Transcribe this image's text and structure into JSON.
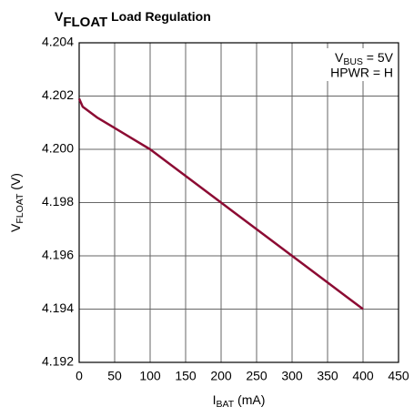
{
  "chart_data": {
    "type": "line",
    "title": [
      "V",
      "FLOAT",
      " Load Regulation"
    ],
    "xlabel": [
      "I",
      "BAT",
      " (mA)"
    ],
    "ylabel": [
      "V",
      "FLOAT",
      " (V)"
    ],
    "annotations": [
      [
        "V",
        "BUS",
        " = 5V"
      ],
      [
        "HPWR = H"
      ]
    ],
    "x": [
      0,
      5,
      10,
      25,
      50,
      75,
      100,
      150,
      200,
      250,
      300,
      350,
      400
    ],
    "values": [
      4.2019,
      4.2016,
      4.2015,
      4.2012,
      4.2008,
      4.2004,
      4.2,
      4.199,
      4.198,
      4.197,
      4.196,
      4.195,
      4.194
    ],
    "color": "#8c0b33",
    "xlim": [
      0,
      450
    ],
    "xticks": [
      0,
      50,
      100,
      150,
      200,
      250,
      300,
      350,
      400,
      450
    ],
    "ylim": [
      4.192,
      4.204
    ],
    "yticks": [
      {
        "value": 4.192,
        "label": "4.192"
      },
      4.194,
      4.196,
      4.198,
      {
        "value": 4.2,
        "label": "4.200"
      },
      4.202,
      4.204
    ],
    "grid": true
  }
}
